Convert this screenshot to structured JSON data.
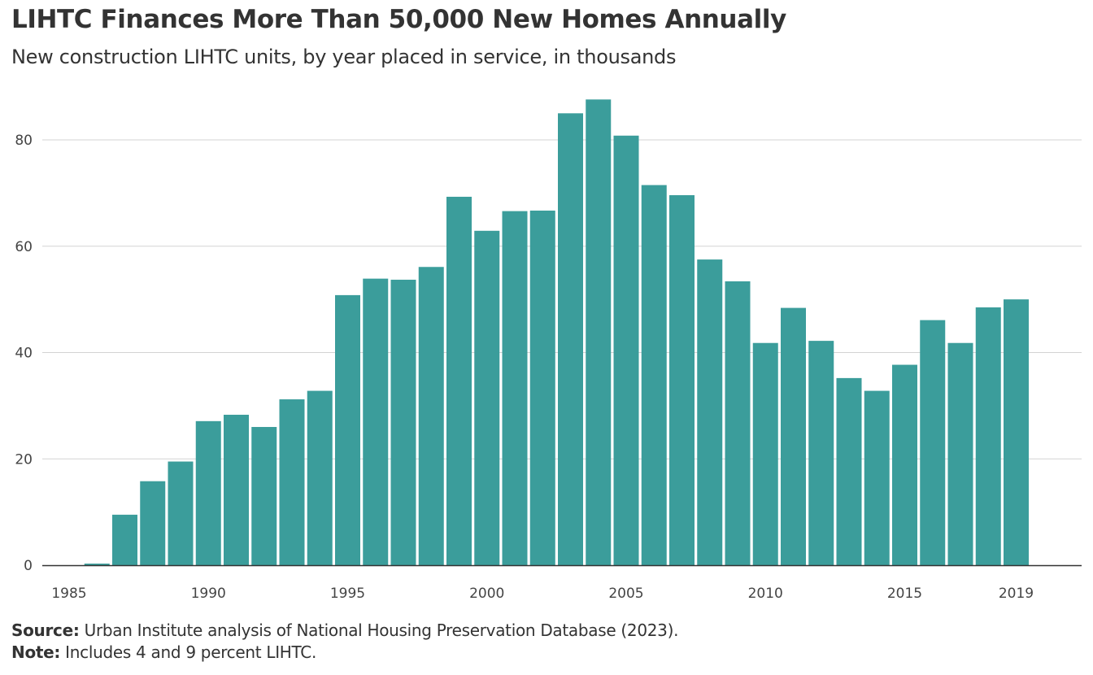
{
  "title": "LIHTC Finances More Than 50,000 New Homes Annually",
  "subtitle": "New construction LIHTC units, by year placed in service, in thousands",
  "footer": {
    "source_label": "Source:",
    "source_text": " Urban Institute analysis of National Housing Preservation Database (2023).",
    "note_label": "Note:",
    "note_text": " Includes 4 and 9 percent LIHTC."
  },
  "colors": {
    "bar": "#3b9d9b",
    "grid": "#d3d3d3",
    "axis": "#333333"
  },
  "chart_data": {
    "type": "bar",
    "title": "LIHTC Finances More Than 50,000 New Homes Annually",
    "subtitle": "New construction LIHTC units, by year placed in service, in thousands",
    "xlabel": "",
    "ylabel": "",
    "ylim": [
      0,
      88
    ],
    "yticks": [
      0,
      20,
      40,
      60,
      80
    ],
    "xticks": [
      1985,
      1990,
      1995,
      2000,
      2005,
      2010,
      2015,
      2019
    ],
    "grid": true,
    "categories": [
      1986,
      1987,
      1988,
      1989,
      1990,
      1991,
      1992,
      1993,
      1994,
      1995,
      1996,
      1997,
      1998,
      1999,
      2000,
      2001,
      2002,
      2003,
      2004,
      2005,
      2006,
      2007,
      2008,
      2009,
      2010,
      2011,
      2012,
      2013,
      2014,
      2015,
      2016,
      2017,
      2018,
      2019
    ],
    "values": [
      0.3,
      9.5,
      15.8,
      19.5,
      27.1,
      28.3,
      26.0,
      31.2,
      32.8,
      50.8,
      53.9,
      53.7,
      56.1,
      69.3,
      62.9,
      66.6,
      66.7,
      85.0,
      87.6,
      80.8,
      71.5,
      69.6,
      57.5,
      53.4,
      41.8,
      48.4,
      42.2,
      35.2,
      32.8,
      37.7,
      46.1,
      41.8,
      48.5,
      50.0
    ]
  }
}
